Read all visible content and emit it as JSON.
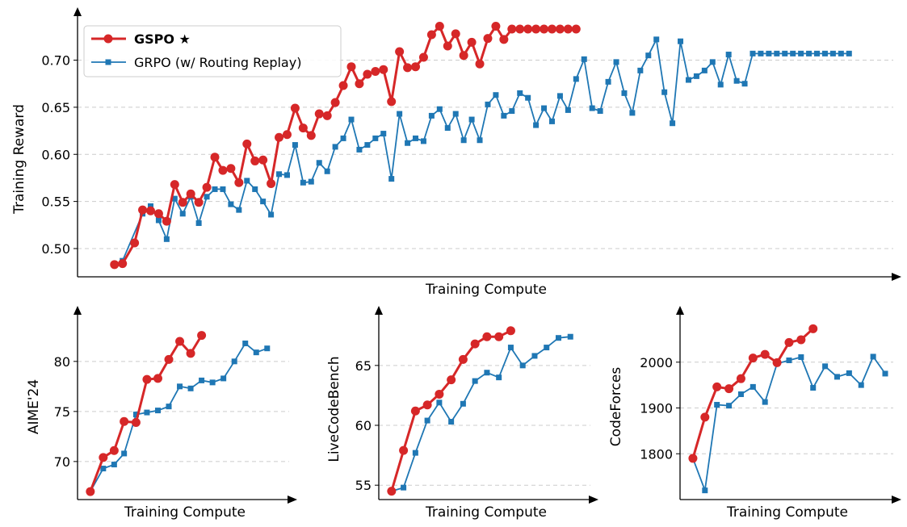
{
  "colors": {
    "gspo": "#d62728",
    "grpo": "#1f77b4",
    "grid": "#cccccc",
    "axis": "#000000"
  },
  "legend": {
    "gspo_label": "GSPO ★",
    "grpo_label": "GRPO (w/ Routing Replay)"
  },
  "chart_data": [
    {
      "id": "training-reward",
      "type": "line",
      "title": "",
      "xlabel": "Training Compute",
      "ylabel": "Training Reward",
      "ylim": [
        0.47,
        0.745
      ],
      "yticks": [
        0.5,
        0.55,
        0.6,
        0.65,
        0.7
      ],
      "ytick_labels": [
        "0.50",
        "0.55",
        "0.60",
        "0.65",
        "0.70"
      ],
      "xlim": [
        0,
        100
      ],
      "grid": "horizontal dashed",
      "legend": "top-left",
      "series": [
        {
          "name": "GSPO ★",
          "key": "gspo",
          "x": [
            4,
            5,
            6.5,
            7.5,
            8.5,
            9.5,
            10.5,
            11.5,
            12.5,
            13.5,
            14.5,
            15.5,
            16.5,
            17.5,
            18.5,
            19.5,
            20.5,
            21.5,
            22.5,
            23.5,
            24.5,
            25.5,
            26.5,
            27.5,
            28.5,
            29.5,
            30.5,
            31.5,
            32.5,
            33.5,
            34.5,
            35.5,
            36.5,
            37.5,
            38.5,
            39.5,
            40.5,
            41.5,
            42.5,
            43.5,
            44.5,
            45.5,
            46.5,
            47.5,
            48.5,
            49.5,
            50.5,
            51.5,
            52.5,
            53.5,
            54.5,
            55.5,
            56.5,
            57.5,
            58.5,
            59.5,
            60.5,
            61.5
          ],
          "y": [
            0.483,
            0.484,
            0.506,
            0.541,
            0.54,
            0.537,
            0.529,
            0.568,
            0.549,
            0.558,
            0.549,
            0.565,
            0.597,
            0.583,
            0.585,
            0.57,
            0.611,
            0.593,
            0.594,
            0.569,
            0.618,
            0.621,
            0.649,
            0.628,
            0.62,
            0.643,
            0.641,
            0.655,
            0.673,
            0.693,
            0.675,
            0.685,
            0.688,
            0.69,
            0.656,
            0.709,
            0.692,
            0.693,
            0.703,
            0.727,
            0.736,
            0.715,
            0.728,
            0.705,
            0.719,
            0.696,
            0.723,
            0.736,
            0.722,
            0.733,
            0.733,
            0.733,
            0.733,
            0.733,
            0.733,
            0.733,
            0.733,
            0.733
          ]
        },
        {
          "name": "GRPO (w/ Routing Replay)",
          "key": "grpo",
          "x": [
            5,
            7.5,
            8.5,
            9.5,
            10.5,
            11.5,
            12.5,
            13.5,
            14.5,
            15.5,
            16.5,
            17.5,
            18.5,
            19.5,
            20.5,
            21.5,
            22.5,
            23.5,
            24.5,
            25.5,
            26.5,
            27.5,
            28.5,
            29.5,
            30.5,
            31.5,
            32.5,
            33.5,
            34.5,
            35.5,
            36.5,
            37.5,
            38.5,
            39.5,
            40.5,
            41.5,
            42.5,
            43.5,
            44.5,
            45.5,
            46.5,
            47.5,
            48.5,
            49.5,
            50.5,
            51.5,
            52.5,
            53.5,
            54.5,
            55.5,
            56.5,
            57.5,
            58.5,
            59.5,
            60.5,
            61.5,
            62.5,
            63.5,
            64.5,
            65.5,
            66.5,
            67.5,
            68.5,
            69.5,
            70.5,
            71.5,
            72.5,
            73.5,
            74.5,
            75.5,
            76.5,
            77.5,
            78.5,
            79.5,
            80.5,
            81.5,
            82.5,
            83.5,
            84.5,
            85.5,
            86.5,
            87.5,
            88.5,
            89.5,
            90.5,
            91.5,
            92.5,
            93.5,
            94.5,
            95.5
          ],
          "y": [
            0.487,
            0.537,
            0.545,
            0.53,
            0.51,
            0.553,
            0.537,
            0.555,
            0.527,
            0.555,
            0.563,
            0.563,
            0.547,
            0.541,
            0.572,
            0.563,
            0.55,
            0.536,
            0.579,
            0.578,
            0.61,
            0.57,
            0.571,
            0.591,
            0.582,
            0.608,
            0.617,
            0.637,
            0.605,
            0.61,
            0.617,
            0.622,
            0.574,
            0.643,
            0.612,
            0.617,
            0.614,
            0.641,
            0.648,
            0.628,
            0.643,
            0.615,
            0.637,
            0.615,
            0.653,
            0.663,
            0.641,
            0.646,
            0.665,
            0.66,
            0.631,
            0.649,
            0.635,
            0.662,
            0.647,
            0.68,
            0.701,
            0.649,
            0.646,
            0.677,
            0.698,
            0.665,
            0.644,
            0.689,
            0.705,
            0.722,
            0.666,
            0.633,
            0.72,
            0.679,
            0.683,
            0.689,
            0.698,
            0.674,
            0.706,
            0.678,
            0.675,
            0.707,
            0.707,
            0.707,
            0.707,
            0.707,
            0.707,
            0.707,
            0.707,
            0.707,
            0.707,
            0.707,
            0.707,
            0.707
          ]
        }
      ]
    },
    {
      "id": "aime24",
      "type": "line",
      "title": "",
      "xlabel": "Training Compute",
      "ylabel": "AIME'24",
      "ylim": [
        66.2,
        84.5
      ],
      "yticks": [
        70,
        75,
        80
      ],
      "ytick_labels": [
        "70",
        "75",
        "80"
      ],
      "xlim": [
        0,
        100
      ],
      "grid": "horizontal dashed",
      "series": [
        {
          "name": "GSPO ★",
          "key": "gspo",
          "x": [
            4,
            10.5,
            16,
            21,
            27,
            32.5,
            38,
            43.5,
            49,
            54.5,
            60
          ],
          "y": [
            67.0,
            70.4,
            71.1,
            74.0,
            73.9,
            78.2,
            78.3,
            80.2,
            82.0,
            80.8,
            82.6
          ]
        },
        {
          "name": "GRPO (w/ Routing Replay)",
          "key": "grpo",
          "x": [
            4,
            10.5,
            16,
            21,
            27,
            32.5,
            38,
            43.5,
            49,
            54.5,
            60,
            65.5,
            71,
            76.5,
            82,
            87.5,
            93
          ],
          "y": [
            67.0,
            69.3,
            69.7,
            70.8,
            74.7,
            74.9,
            75.1,
            75.5,
            77.5,
            77.3,
            78.1,
            77.9,
            78.3,
            80.0,
            81.8,
            80.9,
            81.3
          ]
        }
      ]
    },
    {
      "id": "livecodebench",
      "type": "line",
      "title": "",
      "xlabel": "Training Compute",
      "ylabel": "LiveCodeBench",
      "ylim": [
        53.8,
        69.1
      ],
      "yticks": [
        55,
        60,
        65
      ],
      "ytick_labels": [
        "55",
        "60",
        "65"
      ],
      "xlim": [
        0,
        100
      ],
      "grid": "horizontal dashed",
      "series": [
        {
          "name": "GSPO ★",
          "key": "gspo",
          "x": [
            4,
            10,
            16,
            22,
            28,
            34,
            40,
            46,
            52,
            58,
            64
          ],
          "y": [
            54.5,
            57.9,
            61.2,
            61.7,
            62.6,
            63.8,
            65.5,
            66.8,
            67.4,
            67.4,
            67.9
          ]
        },
        {
          "name": "GRPO (w/ Routing Replay)",
          "key": "grpo",
          "x": [
            4,
            10,
            16,
            22,
            28,
            34,
            40,
            46,
            52,
            58,
            64,
            70,
            76,
            82,
            88,
            94
          ],
          "y": [
            54.5,
            54.8,
            57.7,
            60.4,
            61.9,
            60.3,
            61.8,
            63.7,
            64.4,
            64.0,
            66.5,
            65.0,
            65.8,
            66.5,
            67.3,
            67.4
          ]
        }
      ]
    },
    {
      "id": "codeforces",
      "type": "line",
      "title": "",
      "xlabel": "Training Compute",
      "ylabel": "CodeForces",
      "ylim": [
        1700,
        2100
      ],
      "yticks": [
        1800,
        1900,
        2000
      ],
      "ytick_labels": [
        "1800",
        "1900",
        "2000"
      ],
      "xlim": [
        0,
        100
      ],
      "grid": "horizontal dashed",
      "series": [
        {
          "name": "GSPO ★",
          "key": "gspo",
          "x": [
            4,
            10,
            16,
            22,
            28,
            34,
            40,
            46,
            52,
            58,
            64
          ],
          "y": [
            1790,
            1880,
            1946,
            1942,
            1964,
            2009,
            2017,
            1999,
            2043,
            2049,
            2073
          ]
        },
        {
          "name": "GRPO (w/ Routing Replay)",
          "key": "grpo",
          "x": [
            4,
            10,
            16,
            22,
            28,
            34,
            40,
            46,
            52,
            58,
            64,
            70,
            76,
            82,
            88,
            94,
            100
          ],
          "y": [
            1790,
            1720,
            1907,
            1905,
            1930,
            1946,
            1913,
            1997,
            2004,
            2011,
            1944,
            1991,
            1968,
            1976,
            1950,
            2012,
            1975
          ]
        }
      ]
    }
  ]
}
